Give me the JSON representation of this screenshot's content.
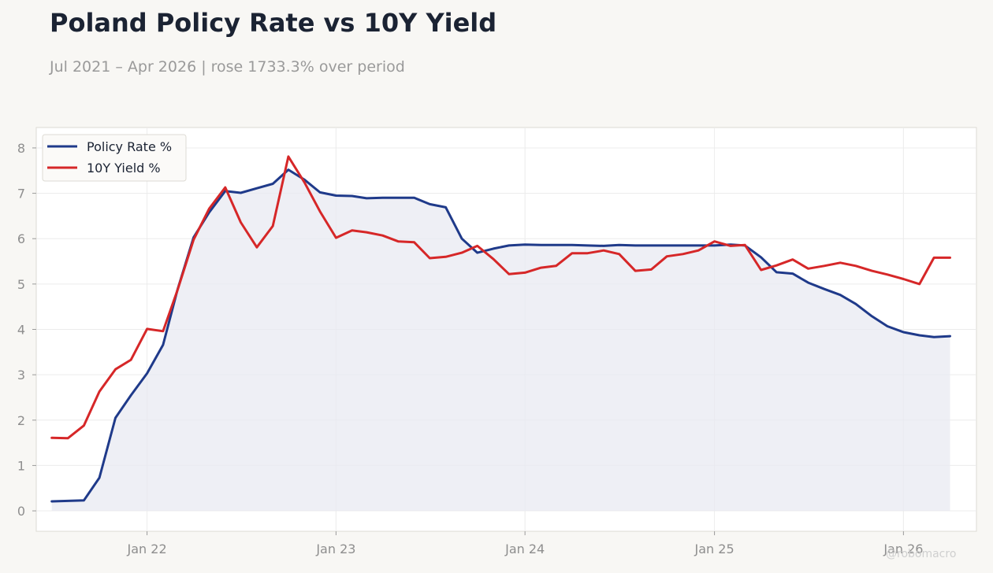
{
  "title": "Poland Policy Rate vs 10Y Yield",
  "subtitle": "Jul 2021 – Apr 2026 | rose 1733.3% over period",
  "watermark": "@robomacro",
  "colors": {
    "background": "#f8f7f4",
    "plot_background": "#ffffff",
    "policy_rate": "#1f3a8a",
    "yield_10y": "#d62728",
    "area_fill": "#e8e9f2"
  },
  "chart_data": {
    "type": "line",
    "grid": true,
    "legend_position": "top-left",
    "xlabel": "",
    "ylabel": "",
    "ylim": [
      -0.45,
      8.45
    ],
    "xlim": [
      "2021-06-01",
      "2026-05-22"
    ],
    "yticks": [
      0,
      1,
      2,
      3,
      4,
      5,
      6,
      7,
      8
    ],
    "xticks": [
      {
        "label": "Jan 22",
        "date": "2022-01-01"
      },
      {
        "label": "Jan 23",
        "date": "2023-01-01"
      },
      {
        "label": "Jan 24",
        "date": "2024-01-01"
      },
      {
        "label": "Jan 25",
        "date": "2025-01-01"
      },
      {
        "label": "Jan 26",
        "date": "2026-01-01"
      }
    ],
    "x": [
      "2021-07-01",
      "2021-08-01",
      "2021-09-01",
      "2021-10-01",
      "2021-11-01",
      "2021-12-01",
      "2022-01-01",
      "2022-02-01",
      "2022-03-01",
      "2022-04-01",
      "2022-05-01",
      "2022-06-01",
      "2022-07-01",
      "2022-08-01",
      "2022-09-01",
      "2022-10-01",
      "2022-11-01",
      "2022-12-01",
      "2023-01-01",
      "2023-02-01",
      "2023-03-01",
      "2023-04-01",
      "2023-05-01",
      "2023-06-01",
      "2023-07-01",
      "2023-08-01",
      "2023-09-01",
      "2023-10-01",
      "2023-11-01",
      "2023-12-01",
      "2024-01-01",
      "2024-02-01",
      "2024-03-01",
      "2024-04-01",
      "2024-05-01",
      "2024-06-01",
      "2024-07-01",
      "2024-08-01",
      "2024-09-01",
      "2024-10-01",
      "2024-11-01",
      "2024-12-01",
      "2025-01-01",
      "2025-02-01",
      "2025-03-01",
      "2025-04-01",
      "2025-05-01",
      "2025-06-01",
      "2025-07-01",
      "2025-08-01",
      "2025-09-01",
      "2025-10-01",
      "2025-11-01",
      "2025-12-01",
      "2026-01-01",
      "2026-02-01",
      "2026-03-01",
      "2026-04-01"
    ],
    "series": [
      {
        "name": "Policy Rate %",
        "color": "#1f3a8a",
        "filled": true,
        "values": [
          0.21,
          0.22,
          0.23,
          0.73,
          2.05,
          2.55,
          3.03,
          3.66,
          4.88,
          6.03,
          6.58,
          7.05,
          7.01,
          7.11,
          7.21,
          7.52,
          7.3,
          7.02,
          6.95,
          6.94,
          6.89,
          6.9,
          6.9,
          6.9,
          6.76,
          6.69,
          6.0,
          5.69,
          5.78,
          5.85,
          5.87,
          5.86,
          5.86,
          5.86,
          5.85,
          5.84,
          5.86,
          5.85,
          5.85,
          5.85,
          5.85,
          5.85,
          5.85,
          5.87,
          5.85,
          5.59,
          5.26,
          5.23,
          5.03,
          4.89,
          4.76,
          4.56,
          4.29,
          4.07,
          3.94,
          3.87,
          3.83,
          3.85
        ]
      },
      {
        "name": "10Y Yield %",
        "color": "#d62728",
        "filled": false,
        "values": [
          1.61,
          1.6,
          1.88,
          2.63,
          3.12,
          3.33,
          4.01,
          3.96,
          4.87,
          5.98,
          6.66,
          7.13,
          6.36,
          5.81,
          6.28,
          7.81,
          7.24,
          6.6,
          6.02,
          6.18,
          6.14,
          6.07,
          5.94,
          5.92,
          5.57,
          5.6,
          5.69,
          5.84,
          5.55,
          5.22,
          5.25,
          5.36,
          5.4,
          5.68,
          5.68,
          5.74,
          5.66,
          5.29,
          5.32,
          5.61,
          5.66,
          5.74,
          5.94,
          5.84,
          5.86,
          5.31,
          5.41,
          5.54,
          5.34,
          5.4,
          5.47,
          5.4,
          5.29,
          5.21,
          5.11,
          5.0,
          5.58,
          5.58
        ]
      }
    ]
  }
}
